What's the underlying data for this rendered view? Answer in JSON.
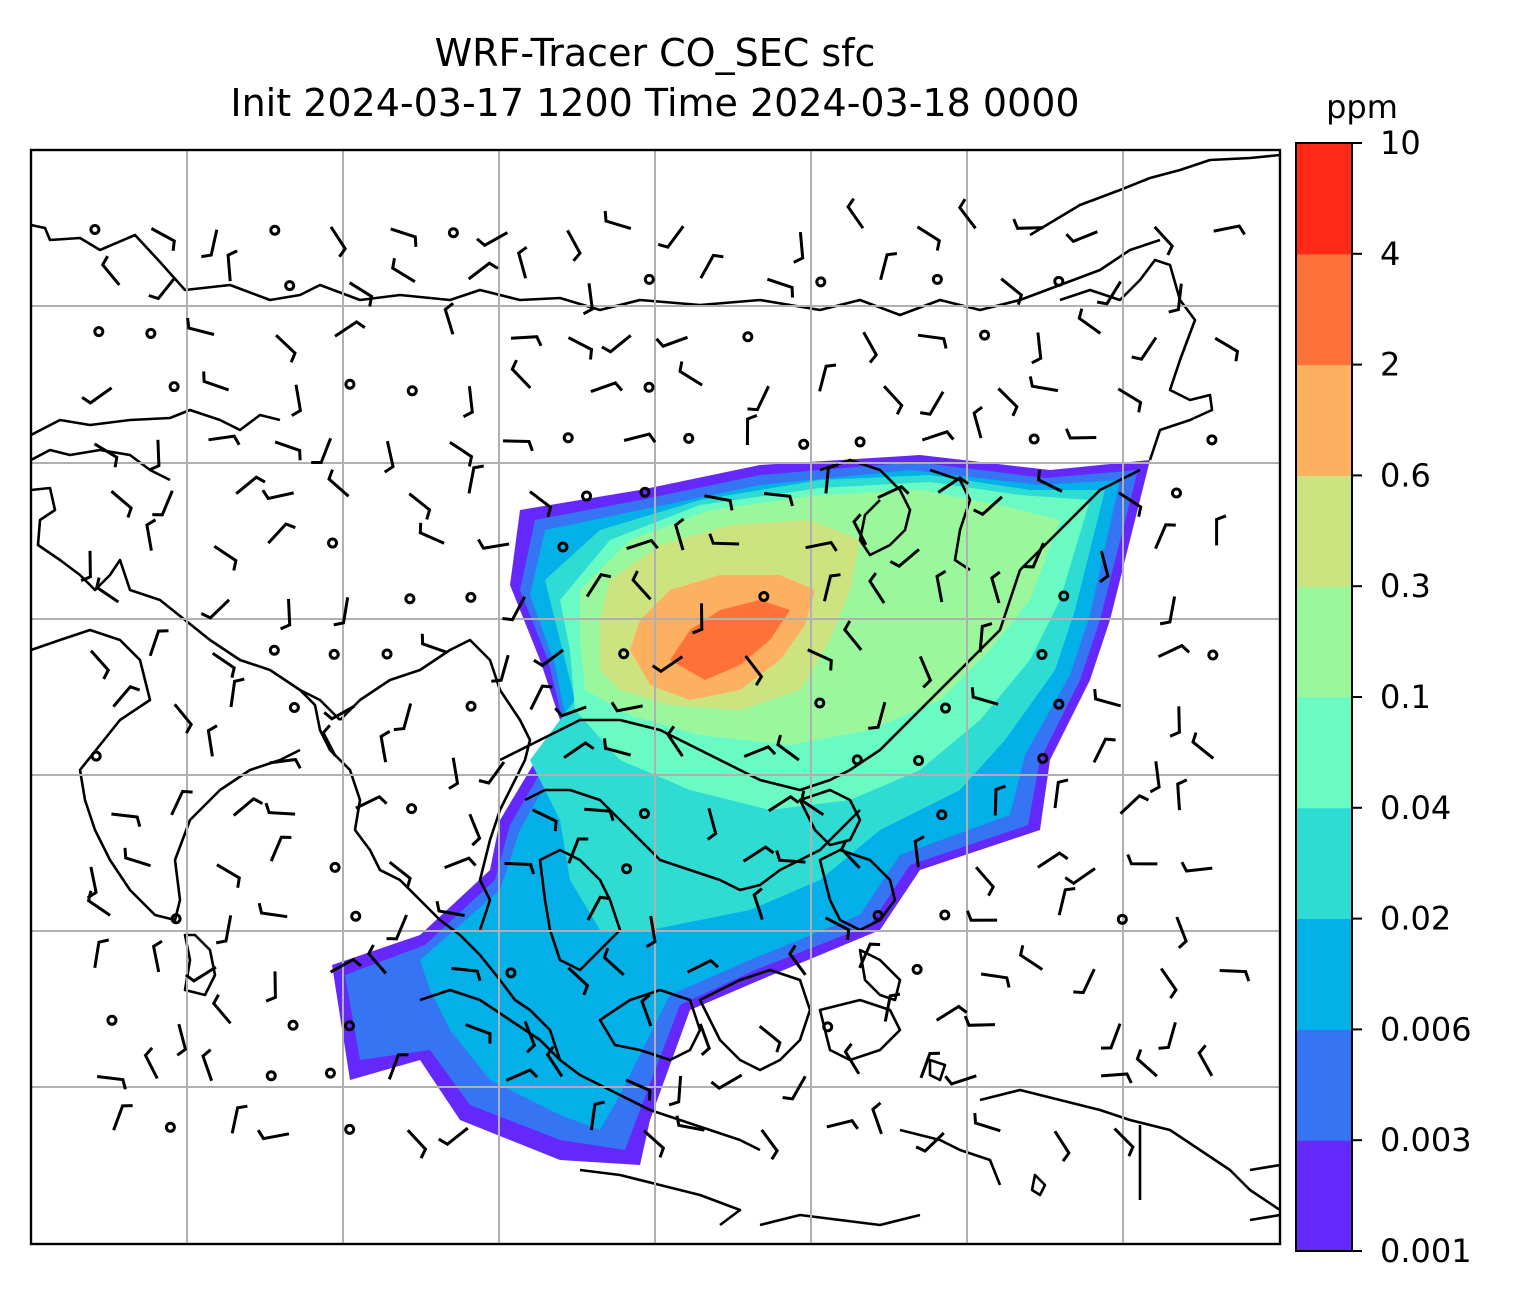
{
  "title_line1": "WRF-Tracer CO_SEC sfc",
  "title_line2": "Init 2024-03-17 1200 Time 2024-03-18 0000",
  "colorbar": {
    "unit": "ppm",
    "levels": [
      "0.001",
      "0.003",
      "0.006",
      "0.02",
      "0.04",
      "0.1",
      "0.3",
      "0.6",
      "2",
      "4",
      "10"
    ],
    "colors": [
      "#6528fb",
      "#3574f3",
      "#04b0e8",
      "#2fdcd4",
      "#6afbc4",
      "#9bf79c",
      "#cde37f",
      "#fdb05f",
      "#fe7139",
      "#fe2a17"
    ]
  },
  "map": {
    "gridlines": true,
    "symbols": "wind-barbs-and-calm-circles",
    "coastline_color": "#000000"
  }
}
